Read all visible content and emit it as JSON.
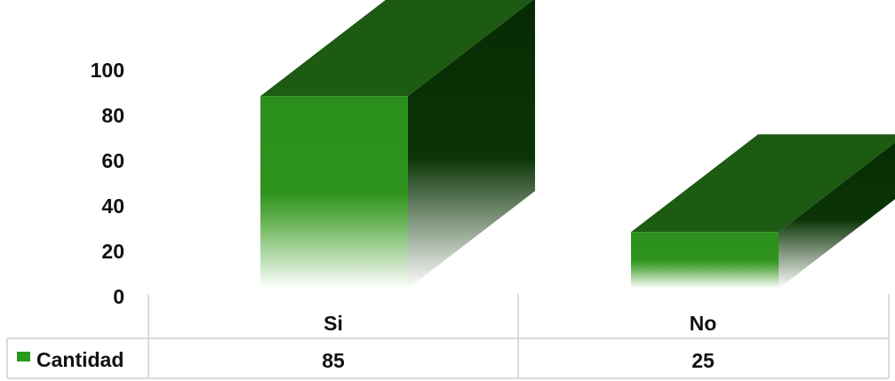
{
  "chart_data": {
    "type": "bar",
    "style": "3d-column-with-data-table",
    "categories": [
      "Si",
      "No"
    ],
    "series": [
      {
        "name": "Cantidad",
        "values": [
          85,
          25
        ]
      }
    ],
    "yticks": [
      "0",
      "20",
      "40",
      "60",
      "80",
      "100"
    ],
    "ylim": [
      0,
      100
    ],
    "grid": false,
    "legend": "data-table-left",
    "colors": {
      "front": "#2a8c1a",
      "top": "#1d5a12",
      "side": "#0c3306",
      "table_line": "#cfcfcf",
      "legend_key": "#2a9a1c"
    }
  }
}
